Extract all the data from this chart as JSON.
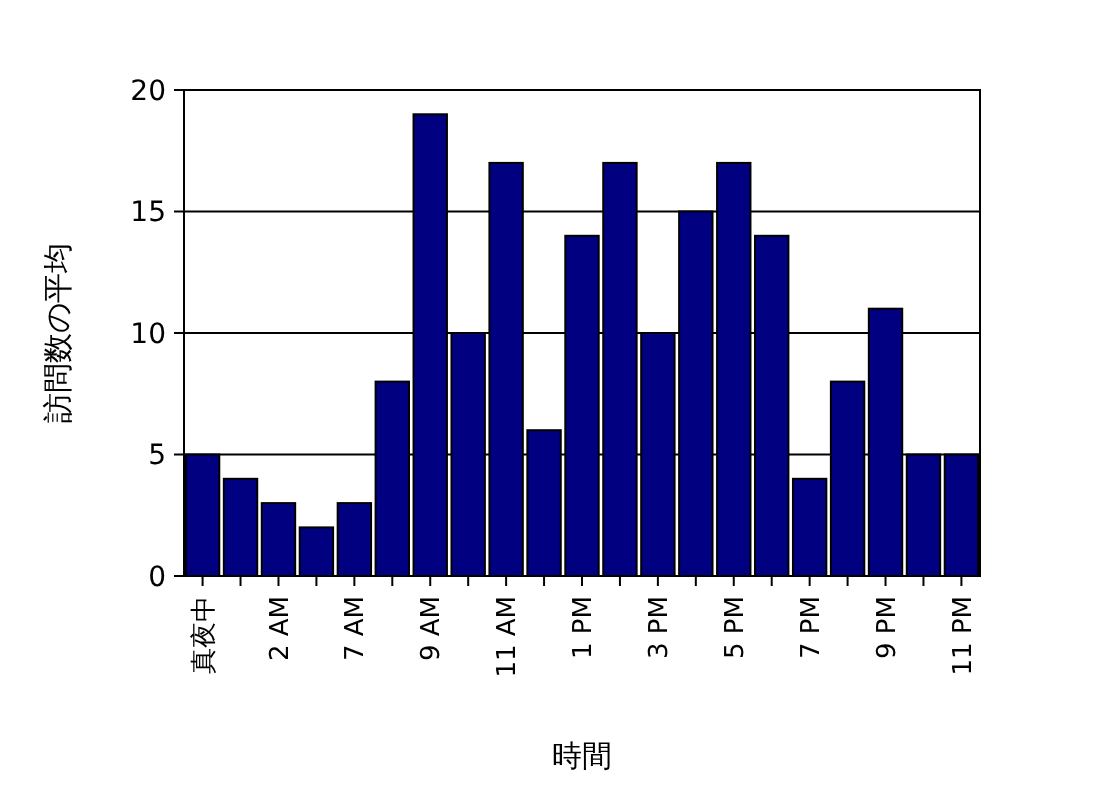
{
  "chart_data": {
    "type": "bar",
    "xlabel": "時間",
    "ylabel": "訪問数の平均",
    "categories": [
      "真夜中",
      null,
      "2 AM",
      null,
      "7 AM",
      null,
      "9 AM",
      null,
      "11 AM",
      null,
      "1 PM",
      null,
      "3 PM",
      null,
      "5 PM",
      null,
      "7 PM",
      null,
      "9 PM",
      null,
      "11 PM"
    ],
    "values": [
      5,
      4,
      3,
      2,
      3,
      8,
      19,
      10,
      17,
      6,
      14,
      17,
      10,
      15,
      17,
      14,
      4,
      8,
      11,
      5,
      5
    ],
    "color": "#000080",
    "ylim": [
      0,
      20
    ],
    "yticks": [
      0,
      5,
      10,
      15,
      20
    ],
    "grid": "y"
  }
}
